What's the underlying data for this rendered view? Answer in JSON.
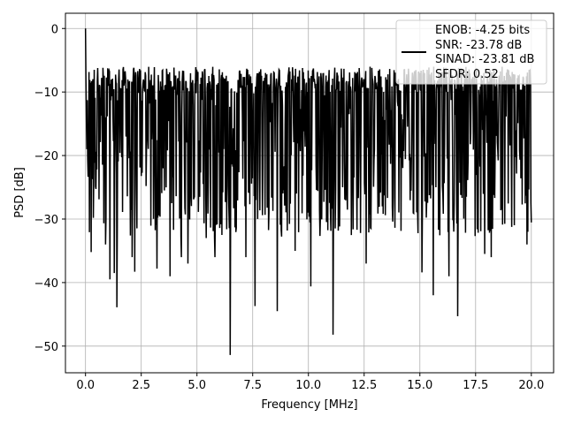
{
  "chart_data": {
    "type": "line",
    "xlabel": "Frequency [MHz]",
    "ylabel": "PSD [dB]",
    "xlim": [
      -0.9,
      21.0
    ],
    "ylim": [
      -54.2,
      2.4
    ],
    "xticks": [
      0.0,
      2.5,
      5.0,
      7.5,
      10.0,
      12.5,
      15.0,
      17.5,
      20.0
    ],
    "xtick_labels": [
      "0.0",
      "2.5",
      "5.0",
      "7.5",
      "10.0",
      "12.5",
      "15.0",
      "17.5",
      "20.0"
    ],
    "yticks": [
      0,
      -10,
      -20,
      -30,
      -40,
      -50
    ],
    "ytick_labels": [
      "0",
      "−10",
      "−20",
      "−30",
      "−40",
      "−50"
    ],
    "grid": true,
    "legend_position": "top-right",
    "legend_lines": [
      "ENOB: -4.25 bits",
      "SNR: -23.78 dB",
      "SINAD: -23.81 dB",
      "SFDR: 0.52"
    ],
    "series": [
      {
        "color": "#000000",
        "x_range": [
          0.0,
          20.0
        ],
        "num_points": 1024,
        "noise_floor_band_db": [
          -27,
          -8
        ],
        "peaks": [
          {
            "x": 0.0,
            "y": 0.0
          },
          {
            "x": 0.05,
            "y": -19
          }
        ],
        "notable_dips": [
          {
            "x": 0.25,
            "y": -35.2
          },
          {
            "x": 0.9,
            "y": -34
          },
          {
            "x": 1.1,
            "y": -39.5
          },
          {
            "x": 1.3,
            "y": -38.5
          },
          {
            "x": 1.4,
            "y": -43.9
          },
          {
            "x": 2.1,
            "y": -36
          },
          {
            "x": 2.2,
            "y": -38.3
          },
          {
            "x": 3.2,
            "y": -37.8
          },
          {
            "x": 3.8,
            "y": -39
          },
          {
            "x": 4.3,
            "y": -36
          },
          {
            "x": 4.6,
            "y": -37
          },
          {
            "x": 5.8,
            "y": -36
          },
          {
            "x": 6.5,
            "y": -51.4
          },
          {
            "x": 7.2,
            "y": -36
          },
          {
            "x": 7.6,
            "y": -43.7
          },
          {
            "x": 8.6,
            "y": -44.5
          },
          {
            "x": 9.4,
            "y": -35
          },
          {
            "x": 10.1,
            "y": -40.6
          },
          {
            "x": 11.1,
            "y": -48.2
          },
          {
            "x": 12.6,
            "y": -37
          },
          {
            "x": 15.1,
            "y": -38.4
          },
          {
            "x": 15.6,
            "y": -42
          },
          {
            "x": 16.3,
            "y": -39
          },
          {
            "x": 16.7,
            "y": -45.3
          },
          {
            "x": 17.9,
            "y": -35.5
          },
          {
            "x": 18.2,
            "y": -36
          },
          {
            "x": 19.8,
            "y": -34
          }
        ]
      }
    ]
  }
}
